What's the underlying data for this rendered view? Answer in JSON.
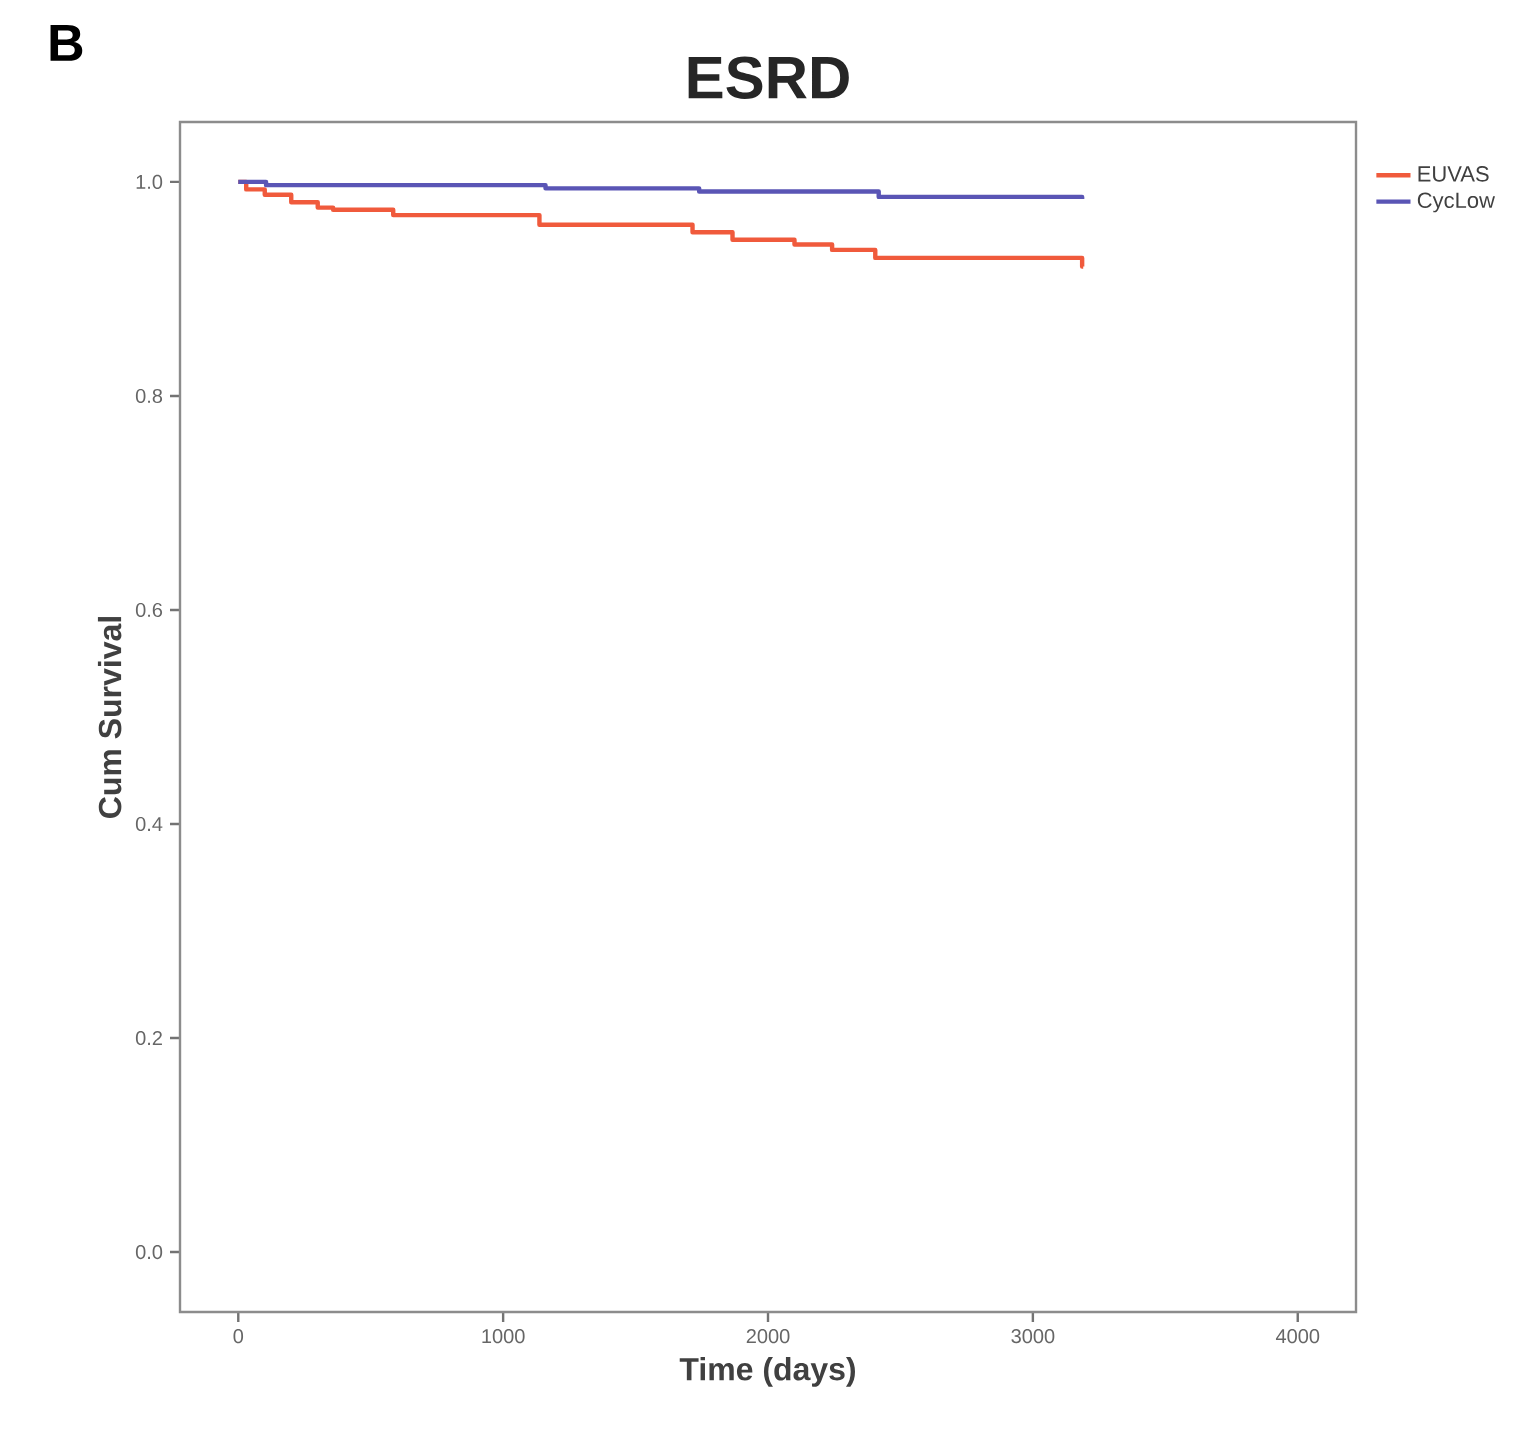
{
  "chart_data": {
    "type": "step",
    "title": "ESRD",
    "xlabel": "Time (days)",
    "ylabel": "Cum Survival",
    "annotations": [
      "B"
    ],
    "xlim": [
      -220,
      4220
    ],
    "ylim": [
      -0.056,
      1.056
    ],
    "xticks": [
      0,
      1000,
      2000,
      3000,
      4000
    ],
    "yticks": [
      {
        "value": 0,
        "label": "0.0"
      },
      {
        "value": 0.2,
        "label": "0.2"
      },
      {
        "value": 0.4,
        "label": "0.4"
      },
      {
        "value": 0.6,
        "label": "0.6"
      },
      {
        "value": 0.8,
        "label": "0.8"
      },
      {
        "value": 1,
        "label": "1.0"
      }
    ],
    "legend": "top right",
    "series": [
      {
        "name": "EUVAS",
        "color": "#f05a3c",
        "x": [
          0,
          30,
          100,
          200,
          300,
          358,
          585,
          1137,
          1715,
          1866,
          2100,
          2242,
          2405,
          3186,
          3190
        ],
        "values": [
          1.0,
          0.993,
          0.988,
          0.981,
          0.976,
          0.974,
          0.969,
          0.96,
          0.953,
          0.946,
          0.9415,
          0.9365,
          0.929,
          0.921,
          0.921
        ]
      },
      {
        "name": "CycLow",
        "color": "#5a55b5",
        "x": [
          0,
          105,
          1160,
          1740,
          2418,
          3186
        ],
        "values": [
          1.0,
          0.997,
          0.994,
          0.991,
          0.986,
          0.984
        ]
      }
    ]
  }
}
